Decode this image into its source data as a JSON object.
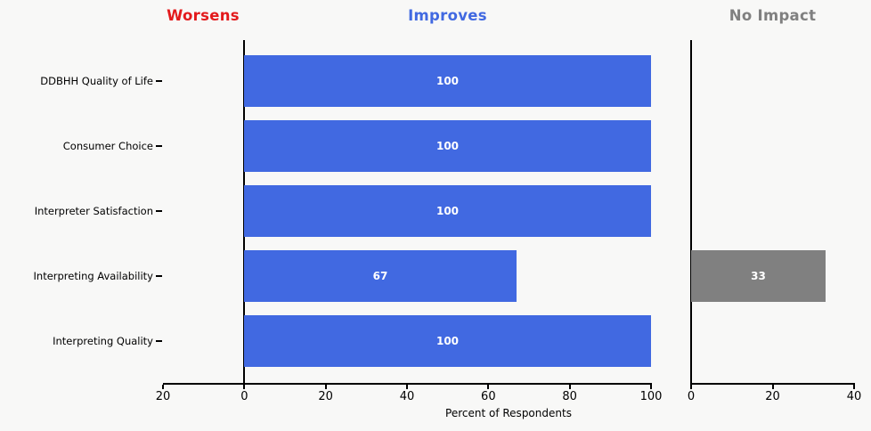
{
  "chart_data": {
    "type": "bar",
    "orientation": "horizontal",
    "categories": [
      "DDBHH Quality of Life",
      "Consumer Choice",
      "Interpreter Satisfaction",
      "Interpreting Availability",
      "Interpreting Quality"
    ],
    "series": [
      {
        "name": "Worsens",
        "color": "#e31a1c",
        "values": [
          0,
          0,
          0,
          0,
          0
        ],
        "xlim": [
          -20,
          0
        ]
      },
      {
        "name": "Improves",
        "color": "#4169e1",
        "values": [
          100,
          100,
          100,
          67,
          100
        ],
        "xlim": [
          0,
          100
        ]
      },
      {
        "name": "No Impact",
        "color": "#808080",
        "values": [
          0,
          0,
          0,
          33,
          0
        ],
        "xlim": [
          0,
          40
        ]
      }
    ],
    "xlabel": "Percent of Respondents",
    "axes": {
      "main": {
        "xlim": [
          -20,
          100
        ],
        "tick_labels": [
          "20",
          "0",
          "20",
          "40",
          "60",
          "80",
          "100"
        ]
      },
      "right": {
        "xlim": [
          0,
          40
        ],
        "tick_labels": [
          "0",
          "20",
          "40"
        ]
      }
    },
    "bar_label_color": "#ffffff",
    "background": "#f8f8f7",
    "grid": false,
    "legend_position": "panel-titles-top"
  }
}
